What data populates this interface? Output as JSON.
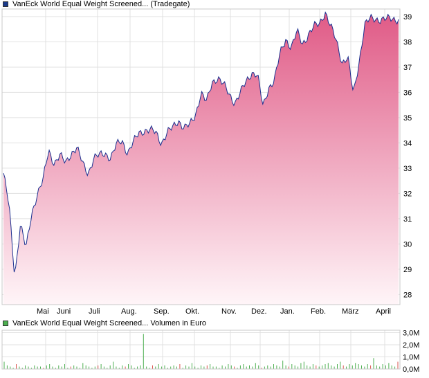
{
  "colors": {
    "price_line": "#1a2f8f",
    "area_top": "#e05a86",
    "area_bottom": "#fff5f8",
    "volume_bar": "#4caf50",
    "volume_bar_red": "#d9534f",
    "grid": "#e1e1e1",
    "frame": "#c8c8c8",
    "legend_price_swatch": "#1a3a8a",
    "legend_volume_swatch": "#4caf50"
  },
  "chart_data": [
    {
      "type": "area",
      "legend": "VanEck World Equal Weight Screened... (Tradegate)",
      "x_tick_labels": [
        "Mai",
        "Juni",
        "Juli",
        "Aug.",
        "Sep.",
        "Okt.",
        "Nov.",
        "Dez.",
        "Jan.",
        "Feb.",
        "März",
        "April"
      ],
      "y_tick_labels": [
        "28",
        "29",
        "30",
        "31",
        "32",
        "33",
        "34",
        "35",
        "36",
        "37",
        "38",
        "39"
      ],
      "ylim": [
        27.6,
        39.3
      ],
      "grid": true,
      "series": [
        {
          "x": [
            "Apr",
            "Apr",
            "Apr",
            "Apr",
            "Apr",
            "Mai",
            "Mai",
            "Mai",
            "Mai",
            "Mai",
            "Mai",
            "Mai",
            "Mai",
            "Mai",
            "Juni",
            "Juni",
            "Juni",
            "Juni",
            "Juni",
            "Juni",
            "Juli",
            "Juli",
            "Juli",
            "Juli",
            "Juli",
            "Aug.",
            "Aug.",
            "Aug.",
            "Aug.",
            "Aug.",
            "Sep.",
            "Sep.",
            "Sep.",
            "Sep.",
            "Sep.",
            "Okt.",
            "Okt.",
            "Okt.",
            "Okt.",
            "Okt.",
            "Okt.",
            "Nov.",
            "Nov.",
            "Nov.",
            "Nov.",
            "Nov.",
            "Dez.",
            "Dez.",
            "Dez.",
            "Dez.",
            "Dez.",
            "Jan.",
            "Jan.",
            "Jan.",
            "Jan.",
            "Jan.",
            "Feb.",
            "Feb.",
            "Feb.",
            "Feb.",
            "Feb.",
            "März",
            "März",
            "März",
            "März",
            "März",
            "März",
            "April",
            "April",
            "April",
            "April"
          ],
          "values": [
            32.8,
            31.5,
            28.7,
            30.8,
            29.8,
            31.2,
            32.0,
            32.5,
            33.7,
            33.2,
            33.5,
            33.2,
            33.6,
            33.8,
            33.2,
            32.8,
            33.4,
            33.5,
            33.6,
            33.4,
            33.9,
            34.1,
            33.6,
            34.0,
            34.4,
            34.5,
            34.5,
            34.4,
            34.0,
            34.4,
            34.6,
            34.9,
            34.6,
            34.7,
            35.1,
            36.0,
            35.6,
            36.4,
            36.6,
            36.3,
            35.9,
            35.6,
            36.0,
            36.4,
            36.8,
            36.7,
            35.4,
            36.2,
            36.5,
            37.5,
            38.1,
            37.8,
            38.4,
            37.9,
            38.3,
            38.6,
            38.7,
            39.2,
            38.6,
            38.0,
            37.2,
            37.4,
            35.9,
            37.2,
            38.7,
            38.9,
            38.9,
            38.9,
            38.9,
            38.9,
            38.9
          ]
        }
      ]
    },
    {
      "type": "bar",
      "legend": "VanEck World Equal Weight Screened... Volumen in Euro",
      "y_tick_labels": [
        "0,0M",
        "1,0M",
        "2,0M",
        "3,0M"
      ],
      "ylim": [
        0,
        3.2
      ],
      "values": [
        0.6,
        0.3,
        0.2,
        0.1,
        0.4,
        0.2,
        0.1,
        0.3,
        0.2,
        0.1,
        0.3,
        0.2,
        0.2,
        0.1,
        0.3,
        0.4,
        0.2,
        0.1,
        0.3,
        0.2,
        0.4,
        0.1,
        0.2,
        0.3,
        0.2,
        0.1,
        0.5,
        0.3,
        0.2,
        0.1,
        0.2,
        0.3,
        0.4,
        0.2,
        0.1,
        0.3,
        0.6,
        0.2,
        0.1,
        0.3,
        0.2,
        0.4,
        0.3,
        0.1,
        0.2,
        0.3,
        2.9,
        0.2,
        0.1,
        0.3,
        0.2,
        0.4,
        0.2,
        0.3,
        0.1,
        0.2,
        0.3,
        0.2,
        0.4,
        0.1,
        0.3,
        0.2,
        0.5,
        0.2,
        0.1,
        0.3,
        0.2,
        0.3,
        0.4,
        0.2,
        0.2,
        0.1,
        0.3,
        0.2,
        0.4,
        0.3,
        0.2,
        0.1,
        0.3,
        0.4,
        0.2,
        0.3,
        0.2,
        0.5,
        0.3,
        0.1,
        0.2,
        0.3,
        0.2,
        0.4,
        0.3,
        0.2,
        0.7,
        0.3,
        0.2,
        0.4,
        0.3,
        0.2,
        0.5,
        0.6,
        0.3,
        0.2,
        0.4,
        0.3,
        0.2,
        0.3,
        0.4,
        0.5,
        0.3,
        0.2,
        0.4,
        0.6,
        0.3,
        0.2,
        0.4,
        0.3,
        0.5,
        0.4,
        0.3,
        0.2,
        0.4,
        0.3,
        0.9,
        0.3,
        0.2,
        0.4,
        0.3,
        0.5,
        0.3,
        0.2,
        0.6
      ]
    }
  ]
}
